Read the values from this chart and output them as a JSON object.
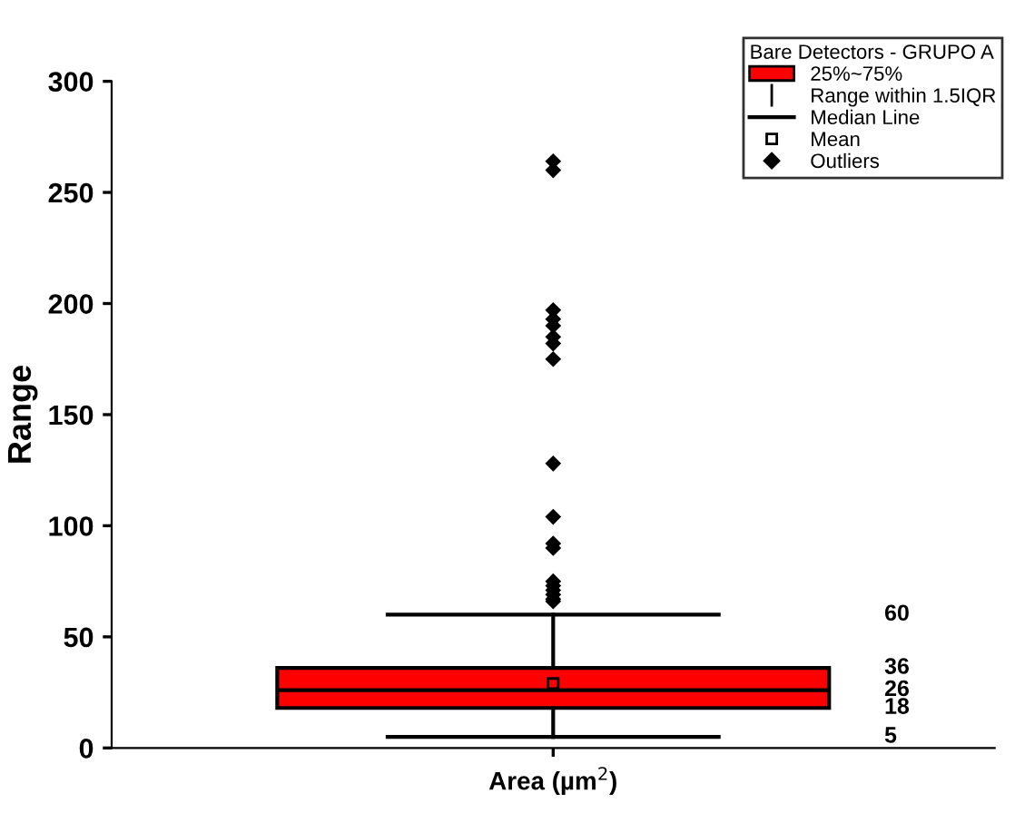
{
  "chart_data": {
    "type": "box",
    "xlabel": "Area (µm$^{2}$)",
    "ylabel": "Range",
    "legend_title": "Bare Detectors - GRUPO A",
    "categories": [
      null
    ],
    "series": [
      {
        "name": "25%~75%",
        "color": "#ff0000",
        "boxes": [
          {
            "low": 5,
            "q1": 18,
            "median": 26,
            "q3": 36,
            "high": 60,
            "mean": 29,
            "outliers": [
              66,
              67,
              69,
              71,
              73,
              75,
              90,
              92,
              104,
              128,
              175,
              182,
              185,
              190,
              193,
              197,
              260,
              264
            ]
          }
        ]
      }
    ],
    "annotations": [
      "60",
      "36",
      "26",
      "18",
      "5",
      "Range within 1.5IQR",
      "Median Line",
      "Mean",
      "Outliers"
    ],
    "ylim": [
      0,
      300
    ],
    "yticks": [
      0,
      50,
      100,
      150,
      200,
      250,
      300
    ],
    "legend": "top right",
    "grid": false,
    "tick_labels": "y"
  }
}
